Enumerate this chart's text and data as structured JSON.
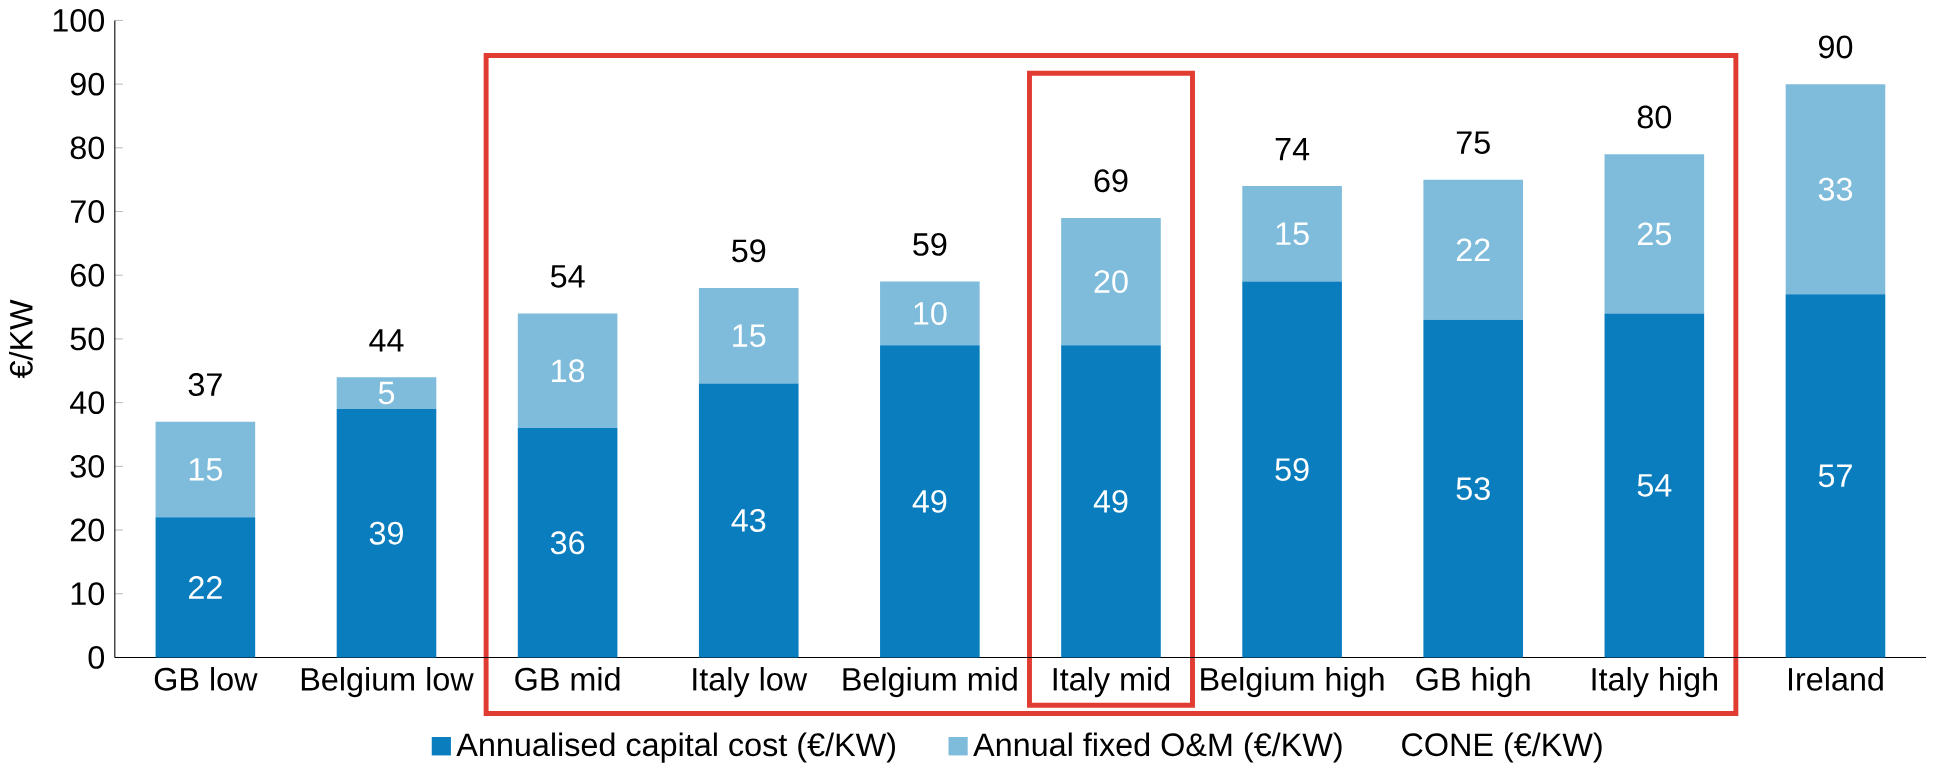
{
  "chart_data": {
    "type": "bar",
    "stacked": true,
    "ylabel": "€/KW",
    "categories": [
      "GB low",
      "Belgium low",
      "GB mid",
      "Italy low",
      "Belgium mid",
      "Italy mid",
      "Belgium high",
      "GB high",
      "Italy high",
      "Ireland"
    ],
    "series": [
      {
        "name": "Annualised capital cost (€/KW)",
        "color": "#0a7dbf",
        "values": [
          22,
          39,
          36,
          43,
          49,
          49,
          59,
          53,
          54,
          57
        ]
      },
      {
        "name": "Annual fixed O&M (€/KW)",
        "color": "#7fbcdc",
        "values": [
          15,
          5,
          18,
          15,
          10,
          20,
          15,
          22,
          25,
          33
        ]
      }
    ],
    "totals": [
      "37",
      "44",
      "54",
      "59",
      "59",
      "69",
      "74",
      "75",
      "80",
      "90"
    ],
    "annotations": [
      "CONE (€/KW)"
    ],
    "data_labels": true,
    "legend": "bottom",
    "grid": false,
    "ylim": [
      0,
      100
    ],
    "yticks": [
      0,
      10,
      20,
      30,
      40,
      50,
      60,
      70,
      80,
      90,
      100
    ]
  }
}
